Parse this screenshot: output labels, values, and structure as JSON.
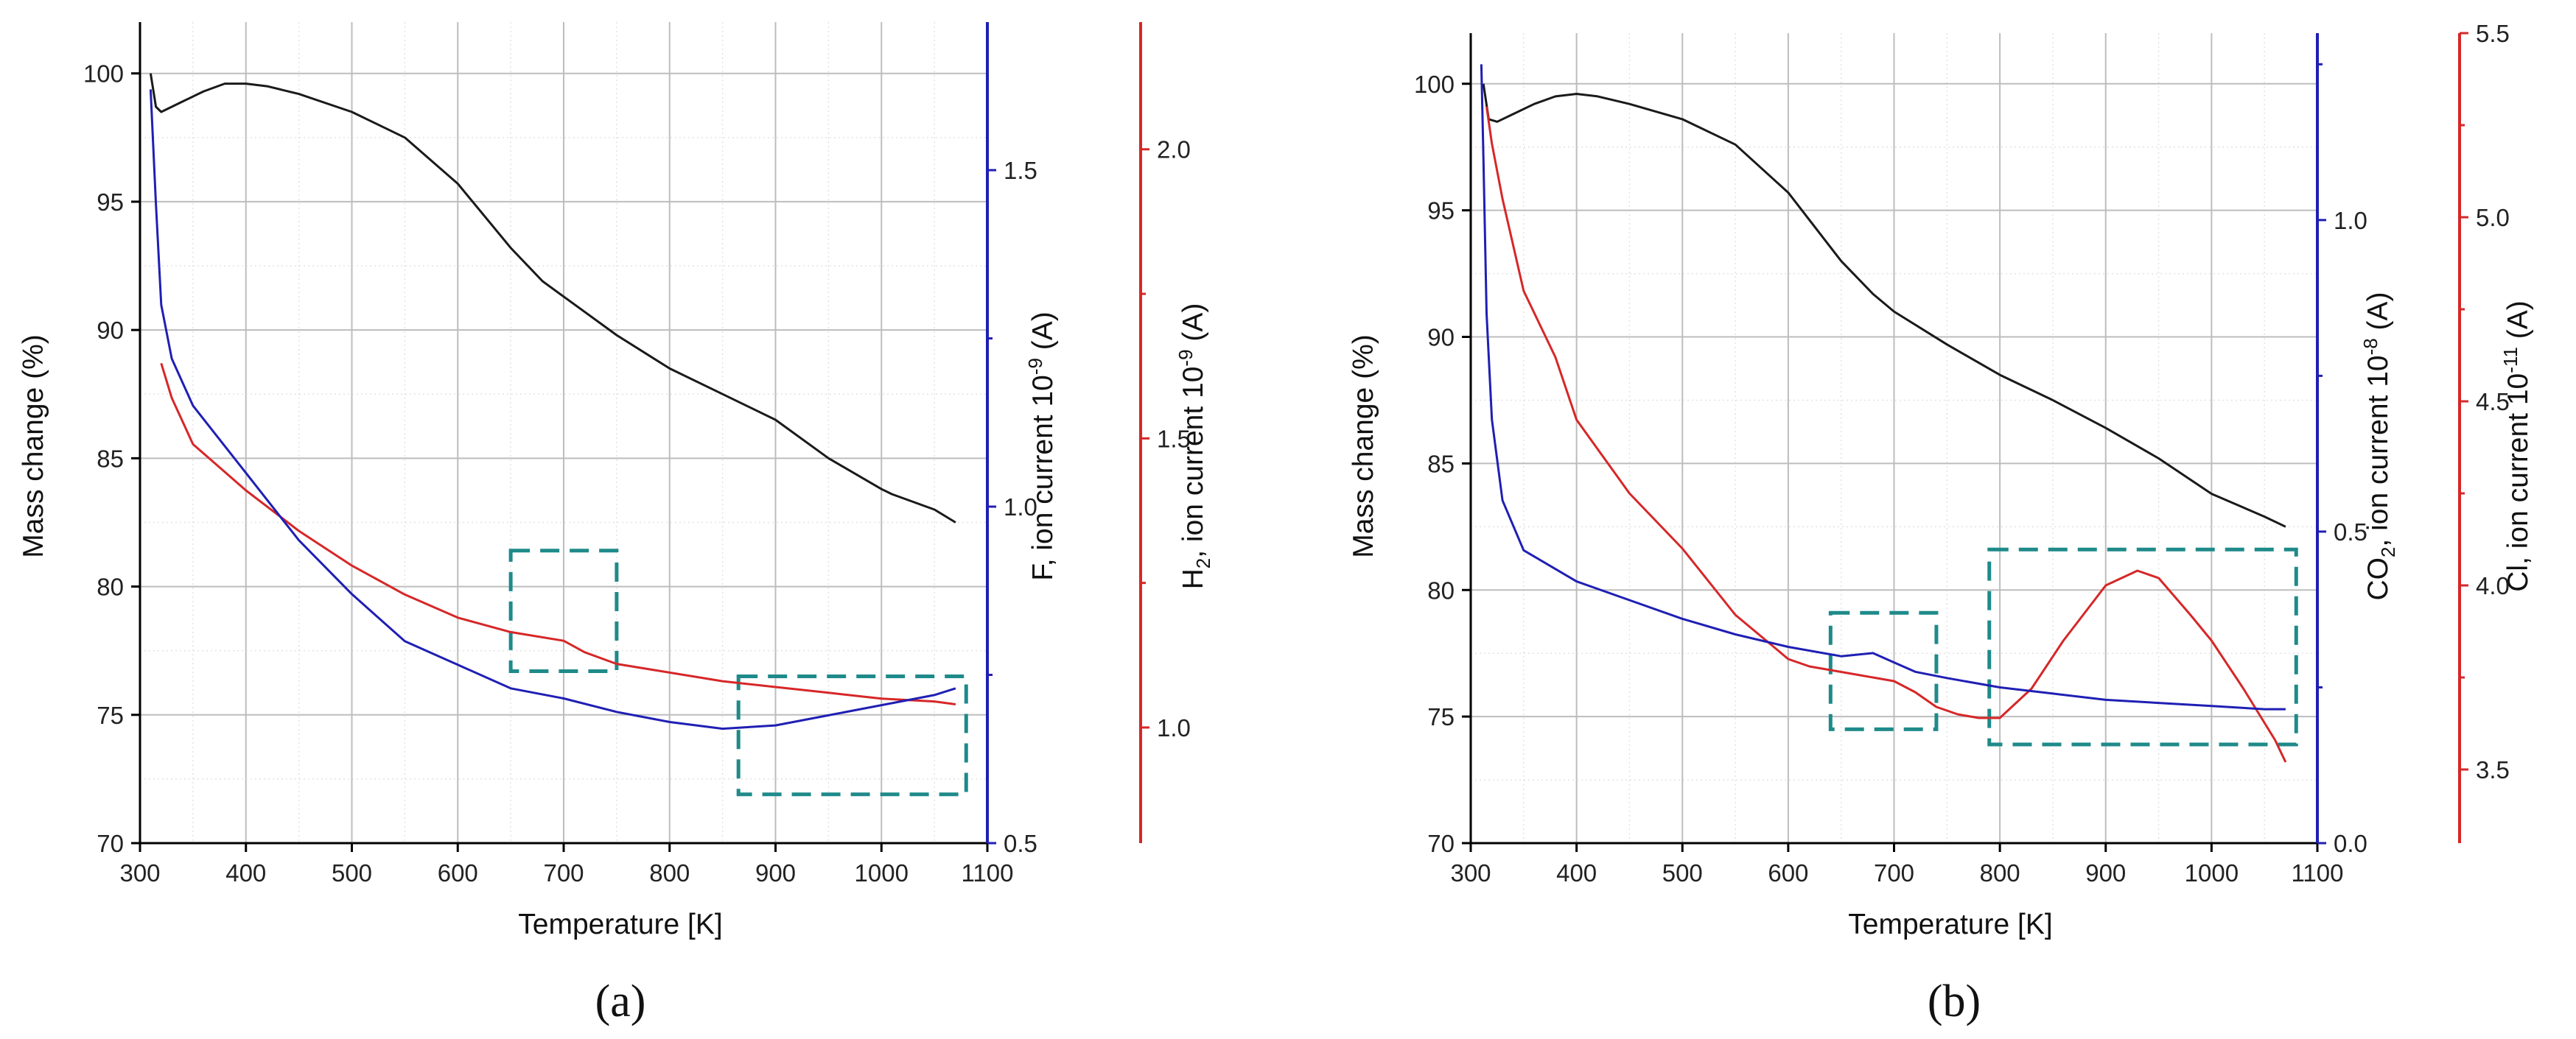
{
  "colors": {
    "mass": "#1a1a1a",
    "red_signal": "#d62728",
    "blue_signal": "#1f1fb4",
    "highlight_box": "#1f8a8a",
    "grid": "#bdbdbd",
    "minor_grid": "#e3e3e3"
  },
  "chart_data": [
    {
      "type": "line",
      "panel_label": "a",
      "panel_text": "(a)",
      "xlabel": "Temperature [K]",
      "xlim": [
        300,
        1100
      ],
      "x_ticks": [
        300,
        400,
        500,
        600,
        700,
        800,
        900,
        1000,
        1100
      ],
      "axes": {
        "left": {
          "label": "Mass change (%)",
          "lim": [
            70,
            102
          ],
          "ticks": [
            70,
            75,
            80,
            85,
            90,
            95,
            100
          ]
        },
        "right1": {
          "label_main": "F, ion current 10",
          "label_sup": "-9",
          "label_end": " (A)",
          "lim": [
            0.5,
            1.72
          ],
          "ticks": [
            0.5,
            1.0,
            1.5
          ],
          "tick_labels": [
            "0.5",
            "1.0",
            "1.5"
          ]
        },
        "right2": {
          "label_main": "H",
          "label_sub": "2",
          "label_mid": ", ion current 10",
          "label_sup": "-9",
          "label_end": " (A)",
          "lim": [
            0.8,
            2.22
          ],
          "ticks": [
            1.0,
            1.5,
            2.0
          ],
          "tick_labels": [
            "1.0",
            "1.5",
            "2.0"
          ]
        }
      },
      "series": [
        {
          "name": "Mass change",
          "axis": "left",
          "color_key": "mass",
          "x": [
            310,
            315,
            320,
            340,
            360,
            380,
            400,
            420,
            450,
            500,
            550,
            600,
            650,
            680,
            700,
            750,
            800,
            850,
            900,
            950,
            1000,
            1010,
            1050,
            1070
          ],
          "y": [
            100.0,
            98.7,
            98.5,
            98.9,
            99.3,
            99.6,
            99.6,
            99.5,
            99.2,
            98.5,
            97.5,
            95.7,
            93.2,
            91.9,
            91.3,
            89.8,
            88.5,
            87.5,
            86.5,
            85.0,
            83.8,
            83.6,
            83.0,
            82.5
          ]
        },
        {
          "name": "H2 ion current",
          "axis": "right2",
          "color_key": "red_signal",
          "x": [
            320,
            330,
            350,
            400,
            450,
            500,
            550,
            600,
            650,
            700,
            720,
            750,
            800,
            850,
            900,
            950,
            1000,
            1050,
            1070
          ],
          "y": [
            1.63,
            1.57,
            1.49,
            1.41,
            1.34,
            1.28,
            1.23,
            1.19,
            1.165,
            1.15,
            1.13,
            1.11,
            1.095,
            1.08,
            1.07,
            1.06,
            1.05,
            1.045,
            1.04
          ]
        },
        {
          "name": "F ion current",
          "axis": "right1",
          "color_key": "blue_signal",
          "x": [
            310,
            315,
            320,
            330,
            350,
            400,
            450,
            500,
            550,
            600,
            650,
            700,
            750,
            800,
            850,
            900,
            950,
            1000,
            1050,
            1070
          ],
          "y": [
            1.62,
            1.45,
            1.3,
            1.22,
            1.15,
            1.05,
            0.95,
            0.87,
            0.8,
            0.765,
            0.73,
            0.715,
            0.695,
            0.68,
            0.67,
            0.675,
            0.69,
            0.705,
            0.72,
            0.73
          ]
        }
      ],
      "highlight_boxes": [
        {
          "x": [
            650,
            750
          ],
          "y_left": [
            76.7,
            81.4
          ]
        },
        {
          "x": [
            865,
            1080
          ],
          "y_left": [
            71.9,
            76.5
          ]
        }
      ]
    },
    {
      "type": "line",
      "panel_label": "b",
      "panel_text": "(b)",
      "xlabel": "Temperature [K]",
      "xlim": [
        300,
        1100
      ],
      "x_ticks": [
        300,
        400,
        500,
        600,
        700,
        800,
        900,
        1000,
        1100
      ],
      "axes": {
        "left": {
          "label": "Mass change (%)",
          "lim": [
            70,
            102
          ],
          "ticks": [
            70,
            75,
            80,
            85,
            90,
            95,
            100
          ]
        },
        "right1": {
          "label_main": "CO",
          "label_sub": "2",
          "label_mid": ", ion current 10",
          "label_sup": "-8",
          "label_end": " (A)",
          "lim": [
            0,
            1.3
          ],
          "ticks": [
            0.0,
            0.5,
            1.0
          ],
          "tick_labels": [
            "0.0",
            "0.5",
            "1.0"
          ]
        },
        "right2": {
          "label_main": "Cl, ion current 10",
          "label_sup": "-11",
          "label_end": " (A)",
          "lim": [
            3.3,
            5.5
          ],
          "ticks": [
            3.5,
            4.0,
            4.5,
            5.0,
            5.5
          ],
          "tick_labels": [
            "3.5",
            "4.0",
            "4.5",
            "5.0",
            "5.5"
          ]
        }
      },
      "series": [
        {
          "name": "Mass change",
          "axis": "left",
          "color_key": "mass",
          "x": [
            312,
            317,
            325,
            340,
            360,
            380,
            400,
            420,
            450,
            500,
            550,
            600,
            650,
            680,
            700,
            750,
            800,
            850,
            900,
            950,
            1000,
            1050,
            1070
          ],
          "y": [
            100.0,
            98.6,
            98.5,
            98.8,
            99.2,
            99.5,
            99.6,
            99.5,
            99.2,
            98.6,
            97.6,
            95.7,
            93.0,
            91.7,
            91.0,
            89.7,
            88.5,
            87.5,
            86.4,
            85.2,
            83.8,
            82.9,
            82.5
          ]
        },
        {
          "name": "Cl ion current",
          "axis": "right2",
          "color_key": "red_signal",
          "x": [
            315,
            320,
            330,
            350,
            380,
            400,
            450,
            500,
            550,
            600,
            620,
            640,
            660,
            680,
            700,
            720,
            740,
            760,
            780,
            800,
            830,
            860,
            900,
            930,
            950,
            980,
            1000,
            1030,
            1060,
            1070
          ],
          "y": [
            5.3,
            5.2,
            5.05,
            4.8,
            4.62,
            4.45,
            4.25,
            4.1,
            3.92,
            3.8,
            3.78,
            3.77,
            3.76,
            3.75,
            3.74,
            3.71,
            3.67,
            3.65,
            3.64,
            3.64,
            3.72,
            3.85,
            4.0,
            4.04,
            4.02,
            3.92,
            3.85,
            3.72,
            3.58,
            3.52
          ]
        },
        {
          "name": "CO2 ion current",
          "axis": "right1",
          "color_key": "blue_signal",
          "x": [
            310,
            312,
            315,
            320,
            330,
            350,
            400,
            450,
            500,
            550,
            600,
            650,
            680,
            700,
            720,
            750,
            800,
            850,
            900,
            950,
            1000,
            1050,
            1070
          ],
          "y": [
            1.25,
            1.1,
            0.85,
            0.68,
            0.55,
            0.47,
            0.42,
            0.39,
            0.36,
            0.335,
            0.315,
            0.3,
            0.305,
            0.29,
            0.275,
            0.265,
            0.25,
            0.24,
            0.23,
            0.225,
            0.22,
            0.215,
            0.215
          ]
        }
      ],
      "highlight_boxes": [
        {
          "x": [
            640,
            740
          ],
          "y_left": [
            74.5,
            79.1
          ]
        },
        {
          "x": [
            790,
            1080
          ],
          "y_left": [
            73.9,
            81.6
          ]
        }
      ]
    }
  ]
}
